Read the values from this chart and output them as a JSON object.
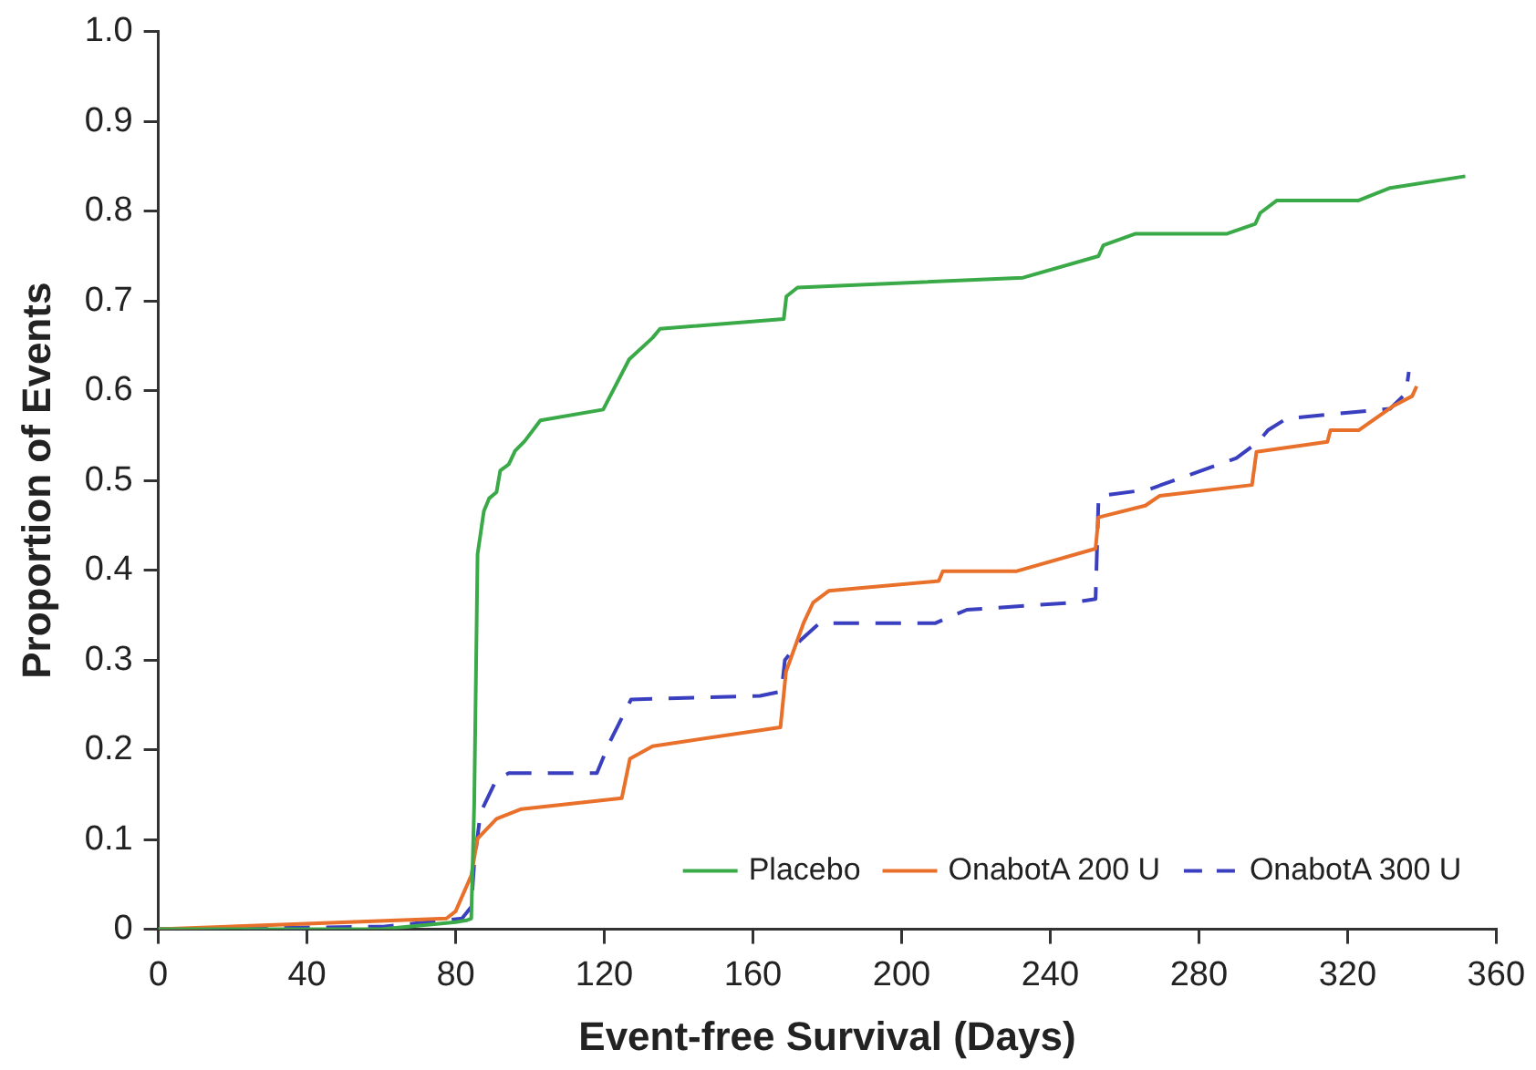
{
  "chart_data": {
    "type": "line",
    "xlabel": "Event-free Survival (Days)",
    "ylabel": "Proportion of Events",
    "xlim": [
      0,
      360
    ],
    "xticks": [
      0,
      40,
      80,
      120,
      160,
      200,
      240,
      280,
      320,
      360
    ],
    "ylim": [
      0,
      1
    ],
    "yticks": [
      {
        "value": 0,
        "label": "0"
      },
      {
        "value": 0.1,
        "label": "0.1"
      },
      {
        "value": 0.2,
        "label": "0.2"
      },
      {
        "value": 0.3,
        "label": "0.3"
      },
      {
        "value": 0.4,
        "label": "0.4"
      },
      {
        "value": 0.5,
        "label": "0.5"
      },
      {
        "value": 0.6,
        "label": "0.6"
      },
      {
        "value": 0.7,
        "label": "0.7"
      },
      {
        "value": 0.8,
        "label": "0.8"
      },
      {
        "value": 0.9,
        "label": "0.9"
      },
      {
        "value": 1,
        "label": "1.0"
      }
    ],
    "grid": false,
    "legend": "bottom right",
    "marker": "none",
    "series": [
      {
        "name": "Placebo",
        "color": "#3aaa48",
        "line_style": "solid",
        "x": [
          0,
          60,
          80,
          83,
          84.2,
          85,
          85.9,
          87.6,
          89,
          91,
          92,
          94.3,
          96,
          98.6,
          102.8,
          119.7,
          126.7,
          133,
          135,
          168.3,
          169,
          172,
          232.7,
          253,
          254.3,
          263,
          287.6,
          295.2,
          296.5,
          301,
          323,
          331.5,
          351.7
        ],
        "values": [
          0,
          0,
          0.008,
          0.01,
          0.012,
          0.14,
          0.418,
          0.466,
          0.48,
          0.487,
          0.511,
          0.518,
          0.533,
          0.544,
          0.567,
          0.579,
          0.635,
          0.659,
          0.669,
          0.68,
          0.705,
          0.715,
          0.726,
          0.75,
          0.762,
          0.775,
          0.775,
          0.786,
          0.798,
          0.812,
          0.812,
          0.826,
          0.839
        ]
      },
      {
        "name": "OnabotA 200 U",
        "color": "#e8702a",
        "line_style": "solid",
        "x": [
          0,
          77.5,
          80,
          84.2,
          85.9,
          91,
          97.7,
          124.7,
          126.9,
          133,
          167.4,
          168.9,
          173.7,
          176.2,
          180.4,
          210,
          211.1,
          231,
          252.2,
          253,
          265.6,
          269.5,
          294.3,
          295.5,
          314.6,
          315.4,
          323,
          332.3,
          337.4,
          338.6
        ],
        "values": [
          0,
          0.012,
          0.02,
          0.06,
          0.101,
          0.123,
          0.134,
          0.146,
          0.19,
          0.204,
          0.225,
          0.287,
          0.342,
          0.364,
          0.377,
          0.388,
          0.399,
          0.399,
          0.424,
          0.459,
          0.472,
          0.483,
          0.495,
          0.532,
          0.543,
          0.556,
          0.556,
          0.583,
          0.594,
          0.605
        ]
      },
      {
        "name": "OnabotA 300 U",
        "color": "#3a3fbf",
        "line_style": "dashed",
        "x": [
          0,
          60.6,
          77.5,
          81.7,
          84.2,
          85,
          86.7,
          91,
          94.3,
          118,
          121.4,
          127.2,
          161.9,
          167.7,
          168.6,
          172.8,
          177.9,
          209,
          217.6,
          246.2,
          252.2,
          253,
          253.8,
          266.5,
          290.1,
          296,
          298.6,
          303.6,
          331.5,
          335.7,
          336.5
        ],
        "values": [
          0,
          0.003,
          0.01,
          0.012,
          0.025,
          0.074,
          0.13,
          0.167,
          0.174,
          0.174,
          0.208,
          0.256,
          0.26,
          0.265,
          0.3,
          0.322,
          0.341,
          0.341,
          0.356,
          0.364,
          0.368,
          0.48,
          0.483,
          0.49,
          0.525,
          0.543,
          0.556,
          0.569,
          0.58,
          0.597,
          0.621
        ]
      }
    ]
  }
}
